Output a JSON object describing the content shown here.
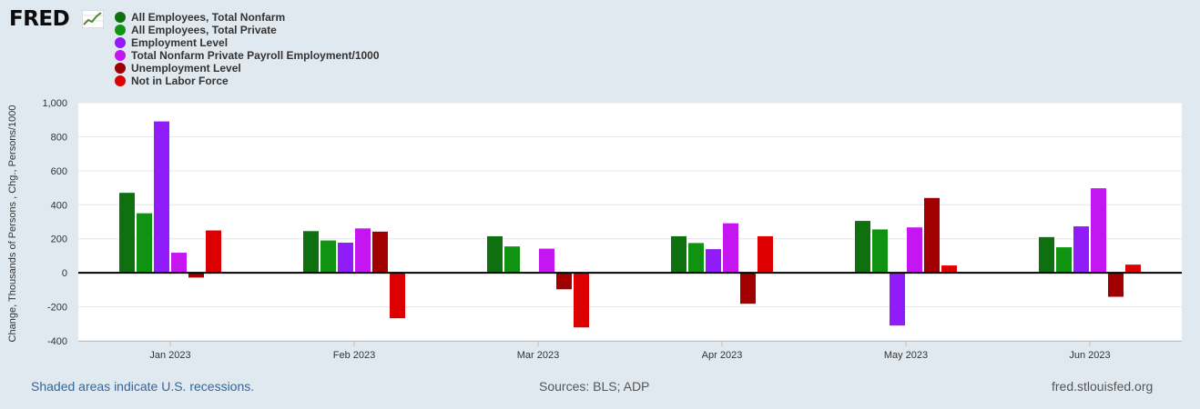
{
  "logo": {
    "text": "FRED"
  },
  "footer": {
    "recession_note": "Shaded areas indicate U.S. recessions.",
    "sources": "Sources: BLS; ADP",
    "site": "fred.stlouisfed.org"
  },
  "chart_data": {
    "type": "bar",
    "title": "",
    "xlabel": "",
    "ylabel": "Change, Thousands of Persons , Chg., Persons/1000",
    "ylim": [
      -400,
      1000
    ],
    "yticks": [
      -400,
      -200,
      0,
      200,
      400,
      600,
      800,
      1000
    ],
    "ytick_labels": [
      "-400",
      "-200",
      "0",
      "200",
      "400",
      "600",
      "800",
      "1,000"
    ],
    "grid": true,
    "legend_position": "top-left",
    "categories": [
      "Jan 2023",
      "Feb 2023",
      "Mar 2023",
      "Apr 2023",
      "May 2023",
      "Jun 2023"
    ],
    "series": [
      {
        "name": "All Employees, Total Nonfarm",
        "color": "#0e700e",
        "values": [
          470,
          245,
          215,
          215,
          305,
          210
        ]
      },
      {
        "name": "All Employees, Total Private",
        "color": "#109310",
        "values": [
          350,
          190,
          155,
          175,
          255,
          150
        ]
      },
      {
        "name": "Employment Level",
        "color": "#901cfa",
        "values": [
          890,
          177,
          -1,
          139,
          -310,
          273
        ]
      },
      {
        "name": "Total Nonfarm Private Payroll Employment/1000",
        "color": "#c416f0",
        "values": [
          118,
          261,
          142,
          291,
          267,
          497
        ]
      },
      {
        "name": "Unemployment Level",
        "color": "#a10000",
        "values": [
          -28,
          242,
          -97,
          -182,
          440,
          -141
        ]
      },
      {
        "name": "Not in Labor Force",
        "color": "#dd0000",
        "values": [
          249,
          -267,
          -321,
          215,
          43,
          48
        ]
      }
    ]
  }
}
